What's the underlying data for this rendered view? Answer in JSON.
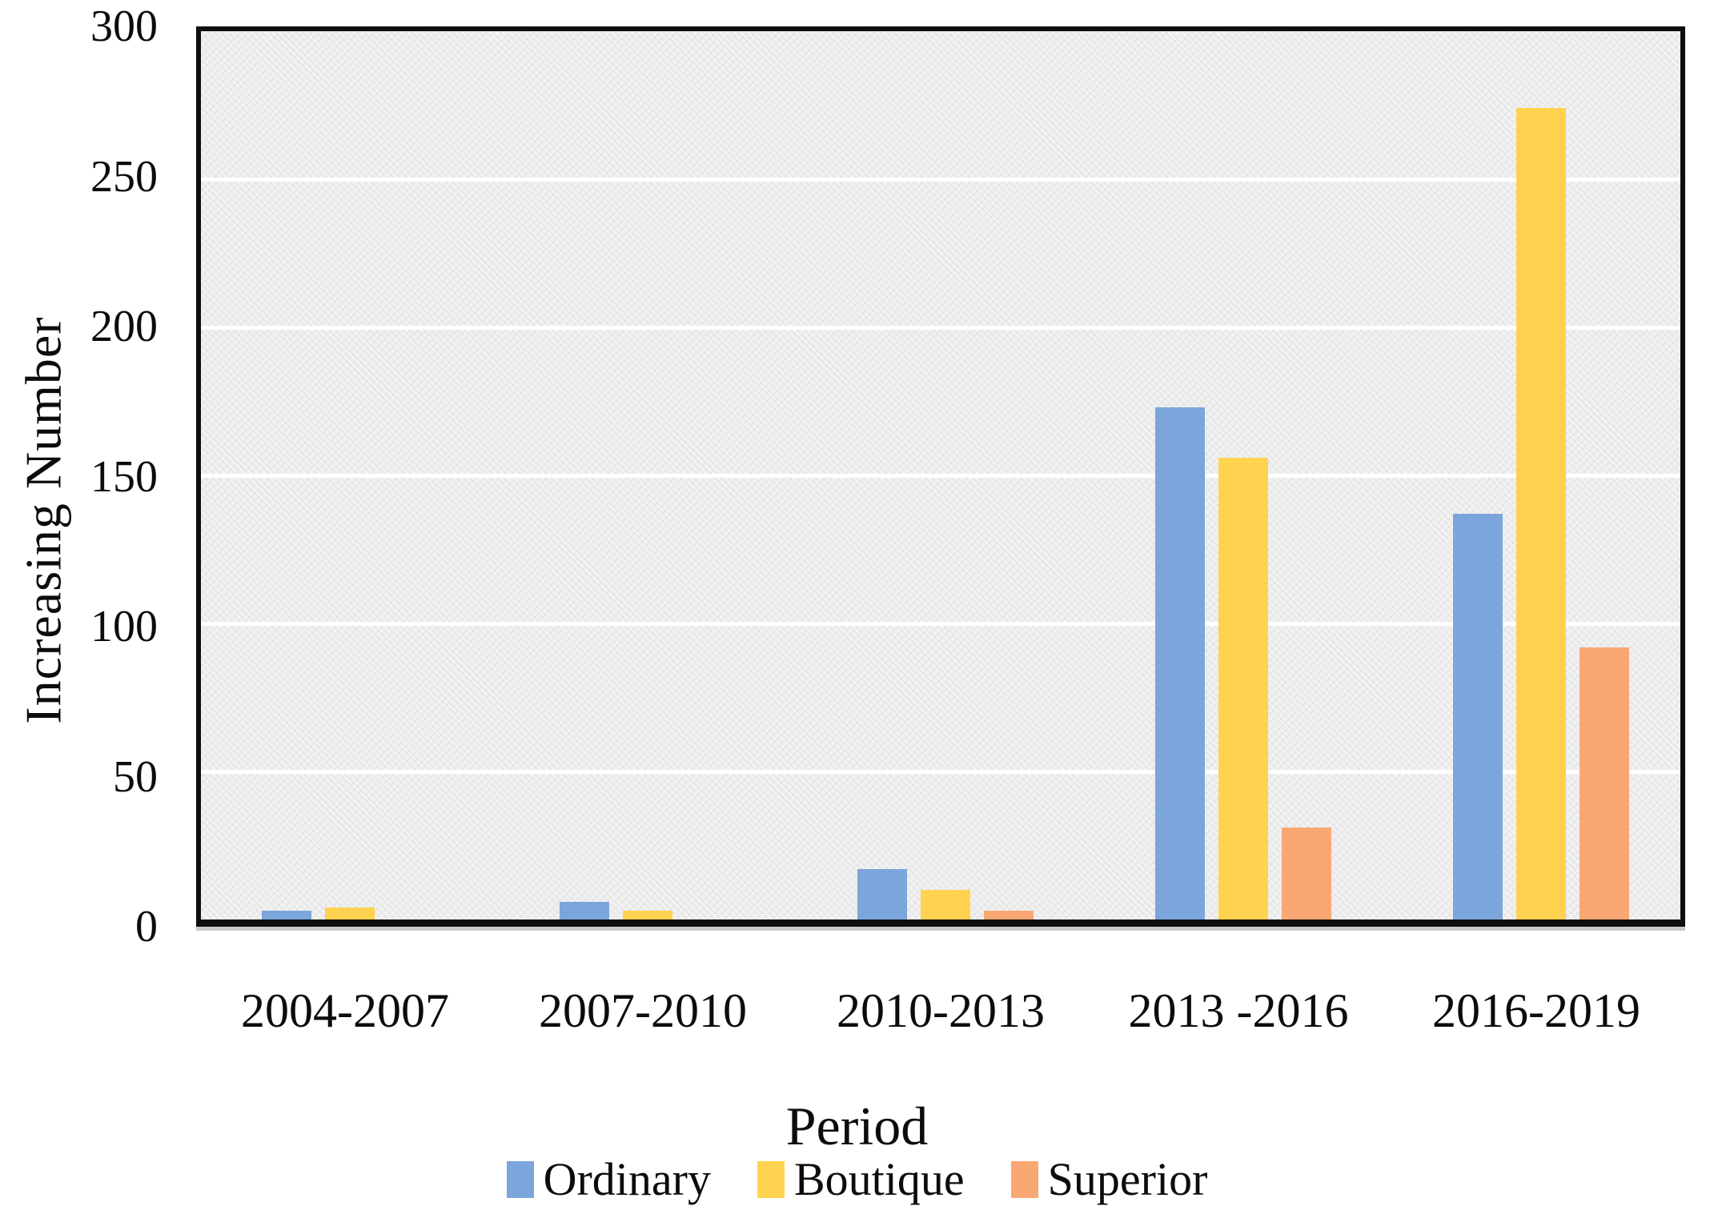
{
  "chart_data": {
    "type": "bar",
    "title": "",
    "xlabel": "Period",
    "ylabel": "Increasing Number",
    "categories": [
      "2004-2007",
      "2007-2010",
      "2010-2013",
      "2013 -2016",
      "2016-2019"
    ],
    "series": [
      {
        "name": "Ordinary",
        "color": "#7ca5db",
        "values": [
          3,
          6,
          17,
          173,
          137
        ]
      },
      {
        "name": "Boutique",
        "color": "#ffd24f",
        "values": [
          4,
          3,
          10,
          156,
          274
        ]
      },
      {
        "name": "Superior",
        "color": "#f9a873",
        "values": [
          0,
          0,
          3,
          31,
          92
        ]
      }
    ],
    "ylim": [
      0,
      300
    ],
    "yticks": [
      0,
      50,
      100,
      150,
      200,
      250,
      300
    ],
    "grid": true,
    "gridline_color": "#ffffff",
    "plot_background": "#ececec",
    "axis_border_color": "#0e0e0e",
    "legend_position": "bottom"
  }
}
